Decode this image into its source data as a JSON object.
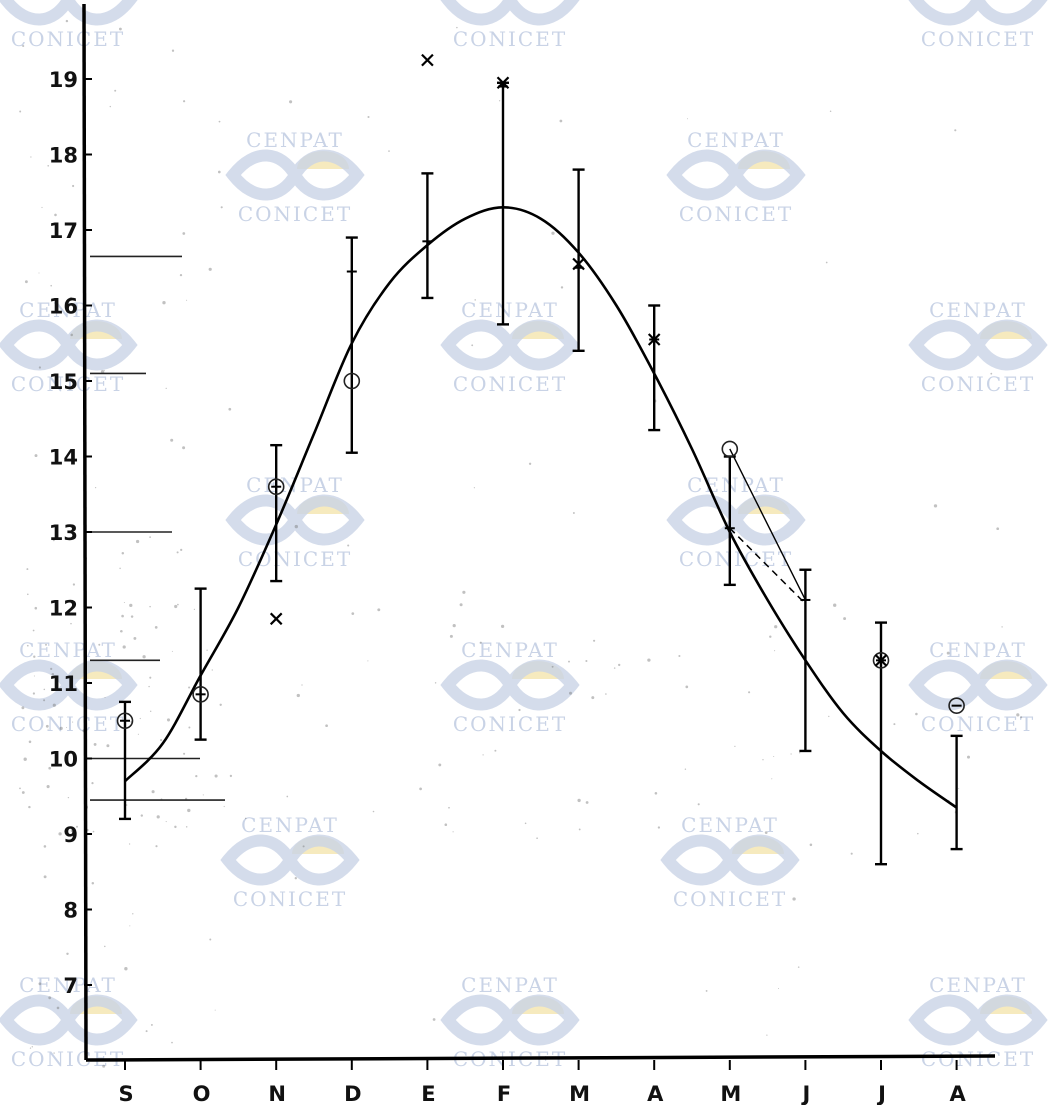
{
  "chart_data": {
    "type": "line",
    "title": "",
    "xlabel": "",
    "ylabel": "",
    "categories": [
      "S",
      "O",
      "N",
      "D",
      "E",
      "F",
      "M",
      "A",
      "M",
      "J",
      "J",
      "A"
    ],
    "ylim": [
      6.5,
      19.8
    ],
    "yticks": [
      7,
      8,
      9,
      10,
      11,
      12,
      13,
      14,
      15,
      16,
      17,
      18,
      19
    ],
    "grid": false,
    "legend": "none",
    "series": [
      {
        "kind": "fitted-curve",
        "x": [
          0,
          0.5,
          1,
          1.5,
          2,
          2.5,
          3,
          3.5,
          4,
          4.5,
          5,
          5.5,
          6,
          6.5,
          7,
          7.5,
          8,
          8.5,
          9,
          9.5,
          10,
          10.5,
          11
        ],
        "values": [
          9.7,
          10.2,
          11.1,
          12.0,
          13.1,
          14.3,
          15.5,
          16.3,
          16.8,
          17.15,
          17.3,
          17.15,
          16.7,
          16.0,
          15.1,
          14.1,
          13.0,
          12.1,
          11.3,
          10.6,
          10.1,
          9.7,
          9.35
        ]
      },
      {
        "kind": "error-bars",
        "x": [
          0,
          1,
          2,
          3,
          4,
          5,
          6,
          7,
          8,
          9,
          10,
          11
        ],
        "mean": [
          10.5,
          10.85,
          13.6,
          16.45,
          16.85,
          18.9,
          16.5,
          15.55,
          13.05,
          12.1,
          11.3,
          10.7
        ],
        "low": [
          9.2,
          10.25,
          12.35,
          14.05,
          16.1,
          15.75,
          15.4,
          14.35,
          12.3,
          10.1,
          8.6,
          8.8
        ],
        "high": [
          10.75,
          12.25,
          14.15,
          16.9,
          17.75,
          18.95,
          17.8,
          16.0,
          14.0,
          12.5,
          11.8,
          10.3
        ]
      },
      {
        "kind": "x-marks",
        "points": [
          [
            2,
            11.85
          ],
          [
            4,
            19.25
          ],
          [
            5,
            18.95
          ],
          [
            6,
            16.55
          ],
          [
            7,
            15.55
          ],
          [
            10,
            11.3
          ]
        ]
      },
      {
        "kind": "circle-marks",
        "points": [
          [
            0,
            10.5
          ],
          [
            1,
            10.85
          ],
          [
            2,
            13.6
          ],
          [
            3,
            15.0
          ],
          [
            8,
            14.1
          ],
          [
            10,
            11.3
          ],
          [
            11,
            10.7
          ]
        ]
      }
    ],
    "annotations": {
      "left_margin_lines_y": [
        16.65,
        15.1,
        13.0,
        11.3,
        10.0,
        9.45
      ],
      "dashed_segment": [
        [
          8,
          13.05
        ],
        [
          9,
          12.05
        ]
      ],
      "solid_segment": [
        [
          8,
          14.1
        ],
        [
          9,
          12.1
        ]
      ]
    }
  },
  "watermark": {
    "top_text": "CENPAT",
    "bottom_text": "CONICET",
    "color": "#c9d3e6",
    "sun_color": "#f3e3a8"
  }
}
